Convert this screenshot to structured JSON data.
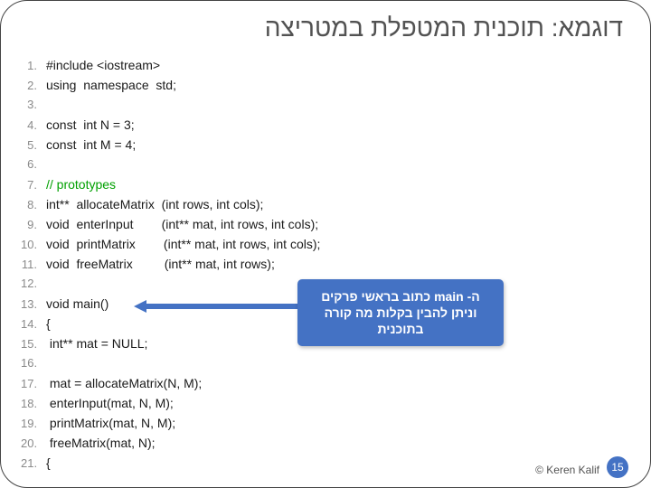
{
  "title": "דוגמא: תוכנית המטפלת במטריצה",
  "code": {
    "lines": [
      {
        "n": "1.",
        "t": "#include <iostream>",
        "cls": ""
      },
      {
        "n": "2.",
        "t": "using  namespace  std;",
        "cls": ""
      },
      {
        "n": "3.",
        "t": "",
        "cls": ""
      },
      {
        "n": "4.",
        "t": "const  int N = 3;",
        "cls": ""
      },
      {
        "n": "5.",
        "t": "const  int M = 4;",
        "cls": ""
      },
      {
        "n": "6.",
        "t": "",
        "cls": ""
      },
      {
        "n": "7.",
        "t": "// prototypes",
        "cls": "green"
      },
      {
        "n": "8.",
        "t": "int**  allocateMatrix  (int rows, int cols);",
        "cls": ""
      },
      {
        "n": "9.",
        "t": "void  enterInput        (int** mat, int rows, int cols);",
        "cls": ""
      },
      {
        "n": "10.",
        "t": "void  printMatrix        (int** mat, int rows, int cols);",
        "cls": ""
      },
      {
        "n": "11.",
        "t": "void  freeMatrix         (int** mat, int rows);",
        "cls": ""
      },
      {
        "n": "12.",
        "t": "",
        "cls": ""
      },
      {
        "n": "13.",
        "t": "void main()",
        "cls": ""
      },
      {
        "n": "14.",
        "t": "{",
        "cls": ""
      },
      {
        "n": "15.",
        "t": " int** mat = NULL;",
        "cls": ""
      },
      {
        "n": "16.",
        "t": "",
        "cls": ""
      },
      {
        "n": "17.",
        "t": " mat = allocateMatrix(N, M);",
        "cls": ""
      },
      {
        "n": "18.",
        "t": " enterInput(mat, N, M);",
        "cls": ""
      },
      {
        "n": "19.",
        "t": " printMatrix(mat, N, M);",
        "cls": ""
      },
      {
        "n": "20.",
        "t": " freeMatrix(mat, N);",
        "cls": ""
      },
      {
        "n": "21.",
        "t": "{",
        "cls": ""
      }
    ]
  },
  "callout": {
    "text": "ה- main כתוב בראשי פרקים וניתן להבין בקלות מה קורה בתוכנית",
    "bg": "#4472c4",
    "fg": "#ffffff"
  },
  "footer": {
    "page": "15",
    "credit": "© Keren Kalif"
  },
  "colors": {
    "title": "#525252",
    "lineNum": "#8a8a8a",
    "codeText": "#1a1a1a",
    "comment": "#00a000",
    "accent": "#4472c4",
    "border": "#444444",
    "bg": "#ffffff"
  }
}
